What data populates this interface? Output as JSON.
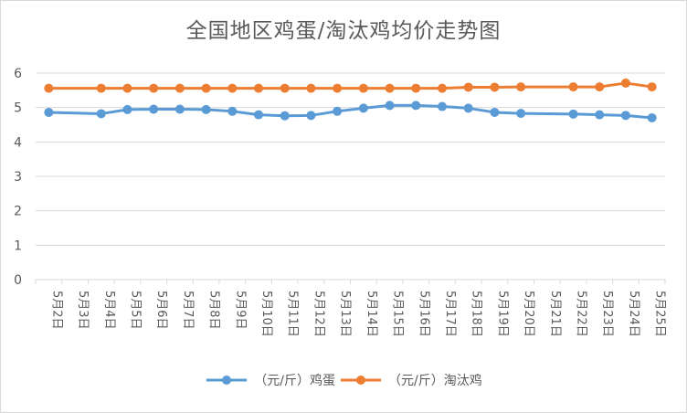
{
  "chart_data": {
    "type": "line",
    "title": "全国地区鸡蛋/淘汰鸡均价走势图",
    "categories": [
      "5月2日",
      "5月3日",
      "5月4日",
      "5月5日",
      "5月6日",
      "5月7日",
      "5月8日",
      "5月9日",
      "5月10日",
      "5月11日",
      "5月12日",
      "5月13日",
      "5月14日",
      "5月15日",
      "5月16日",
      "5月17日",
      "5月18日",
      "5月19日",
      "5月20日",
      "5月21日",
      "5月22日",
      "5月23日",
      "5月24日",
      "5月25日"
    ],
    "series": [
      {
        "name": "（元/斤）鸡蛋",
        "color": "#5b9bd5",
        "values": [
          4.86,
          null,
          4.82,
          4.94,
          4.95,
          4.95,
          4.94,
          4.89,
          4.79,
          4.76,
          4.77,
          4.89,
          4.98,
          5.06,
          5.06,
          5.03,
          4.98,
          4.86,
          4.83,
          null,
          4.81,
          4.79,
          4.77,
          4.7
        ]
      },
      {
        "name": "（元/斤）淘汰鸡",
        "color": "#ed7d31",
        "values": [
          5.56,
          null,
          5.56,
          5.56,
          5.56,
          5.56,
          5.56,
          5.56,
          5.56,
          5.56,
          5.56,
          5.56,
          5.56,
          5.56,
          5.56,
          5.56,
          5.59,
          5.59,
          5.6,
          null,
          5.6,
          5.6,
          5.71,
          5.6
        ]
      }
    ],
    "ylim": [
      0,
      6
    ],
    "yticks": [
      0,
      1,
      2,
      3,
      4,
      5,
      6
    ],
    "grid": true,
    "legend": "bottom"
  }
}
